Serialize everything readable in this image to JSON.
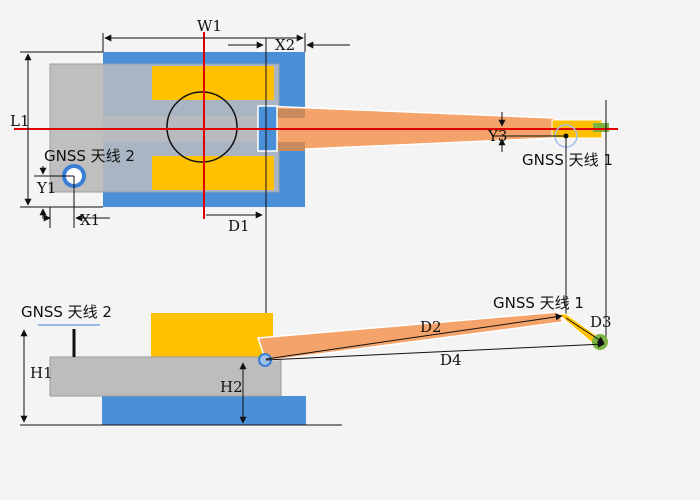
{
  "labels": {
    "w1": "W1",
    "x2": "X2",
    "l1": "L1",
    "y3": "Y3",
    "gnss1_top": "GNSS 天线 1",
    "gnss2_top": "GNSS 天线 2",
    "y1": "Y1",
    "x1": "X1",
    "d1": "D1",
    "gnss2_side": "GNSS 天线 2",
    "gnss1_side": "GNSS 天线 1",
    "d2": "D2",
    "d3": "D3",
    "d4": "D4",
    "h1": "H1",
    "h2": "H2"
  },
  "colors": {
    "background": "#f4f4f4",
    "track_blue": "#4a90d9",
    "body_gray": "#bdbdbd",
    "pad_yellow": "#ffc000",
    "boom_orange": "#f4a36b",
    "axis_red": "#e00000",
    "antenna_blue": "#3a7fd5",
    "bucket_green": "#7cb342"
  }
}
